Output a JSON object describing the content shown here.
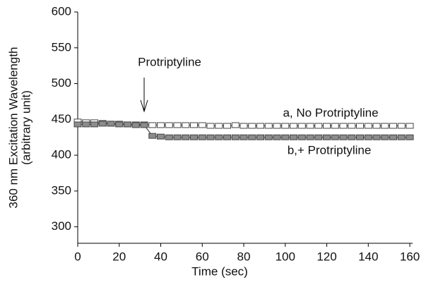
{
  "chart_data": {
    "type": "line",
    "xlabel": "Time (sec)",
    "ylabel": [
      "360 nm Excitation Wavelength",
      "(arbitrary unit)"
    ],
    "x": [
      0,
      4,
      8,
      12,
      16,
      20,
      24,
      28,
      32,
      36,
      40,
      44,
      48,
      52,
      56,
      60,
      64,
      68,
      72,
      76,
      80,
      84,
      88,
      92,
      96,
      100,
      104,
      108,
      112,
      116,
      120,
      124,
      128,
      132,
      136,
      140,
      144,
      148,
      152,
      156,
      160
    ],
    "series": [
      {
        "name": "a, No Protriptyline",
        "color": "#ffffff",
        "values": [
          447,
          446,
          446,
          445,
          444,
          444,
          443,
          443,
          443,
          442,
          442,
          442,
          442,
          442,
          442,
          442,
          441,
          441,
          441,
          442,
          441,
          441,
          441,
          441,
          441,
          441,
          441,
          441,
          441,
          441,
          441,
          441,
          441,
          441,
          441,
          441,
          441,
          441,
          441,
          441,
          441
        ]
      },
      {
        "name": "b,+ Protriptyline",
        "color": "#8c8c8c",
        "values": [
          443,
          443,
          443,
          444,
          444,
          443,
          443,
          442,
          442,
          427,
          426,
          425,
          425,
          425,
          425,
          425,
          425,
          425,
          425,
          425,
          425,
          425,
          425,
          425,
          425,
          425,
          425,
          425,
          425,
          425,
          425,
          425,
          425,
          425,
          425,
          425,
          425,
          425,
          425,
          425,
          425
        ]
      }
    ],
    "annotations": [
      {
        "text": "Protriptyline",
        "x": 32
      }
    ],
    "xlim": [
      0,
      160
    ],
    "xticks": [
      0,
      20,
      40,
      60,
      80,
      100,
      120,
      140,
      160
    ],
    "ylim": [
      277,
      600
    ],
    "yticks": [
      300,
      350,
      400,
      450,
      500,
      550,
      600
    ]
  }
}
